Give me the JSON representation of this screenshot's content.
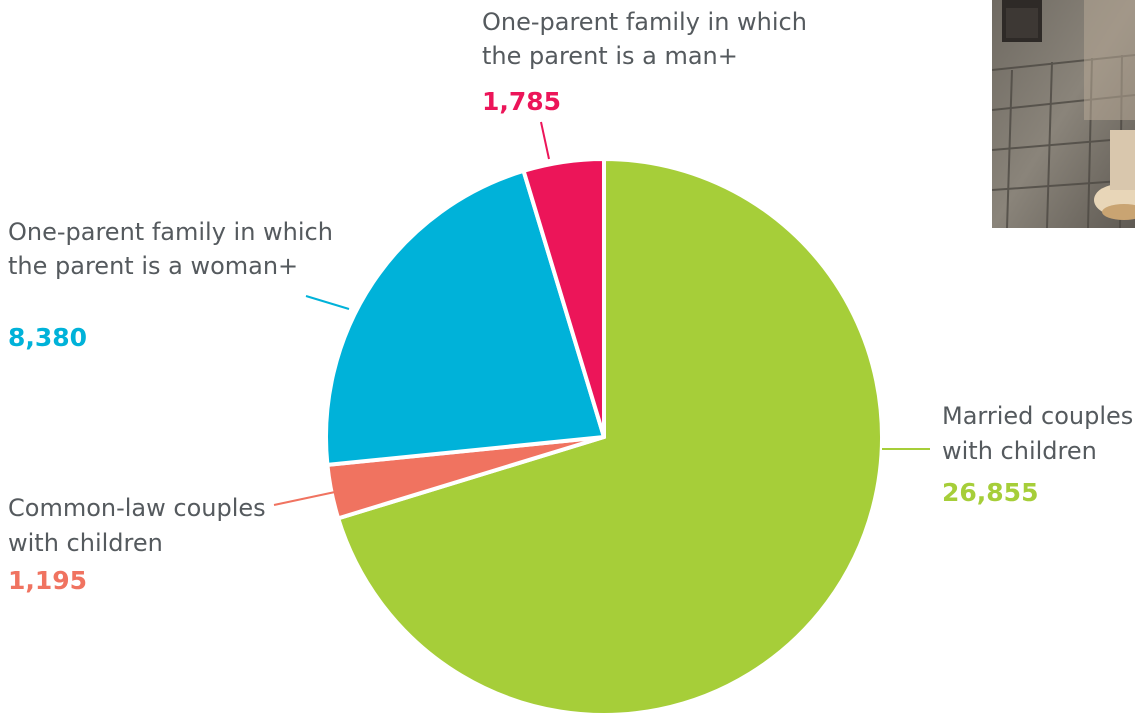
{
  "chart_data": {
    "type": "pie",
    "series": [
      {
        "slices": [
          {
            "label_line1": "Married couples",
            "label_line2": "with children",
            "value": 26855,
            "value_text": "26,855",
            "color": "#a6ce39"
          },
          {
            "label_line1": "Common-law couples",
            "label_line2": "with children",
            "value": 1195,
            "value_text": "1,195",
            "color": "#f07360"
          },
          {
            "label_line1": "One-parent family in which",
            "label_line2": "the parent is a woman+",
            "value": 8380,
            "value_text": "8,380",
            "color": "#00b2d9"
          },
          {
            "label_line1": "One-parent family in which",
            "label_line2": "the parent is a man+",
            "value": 1785,
            "value_text": "1,785",
            "color": "#ec1559"
          }
        ]
      }
    ],
    "start_angle": "12 o'clock",
    "direction": "clockwise",
    "separator_color": "#ffffff",
    "leader_line_color": "label color"
  },
  "decorative_photo": {
    "icon": "street-photo-icon"
  }
}
